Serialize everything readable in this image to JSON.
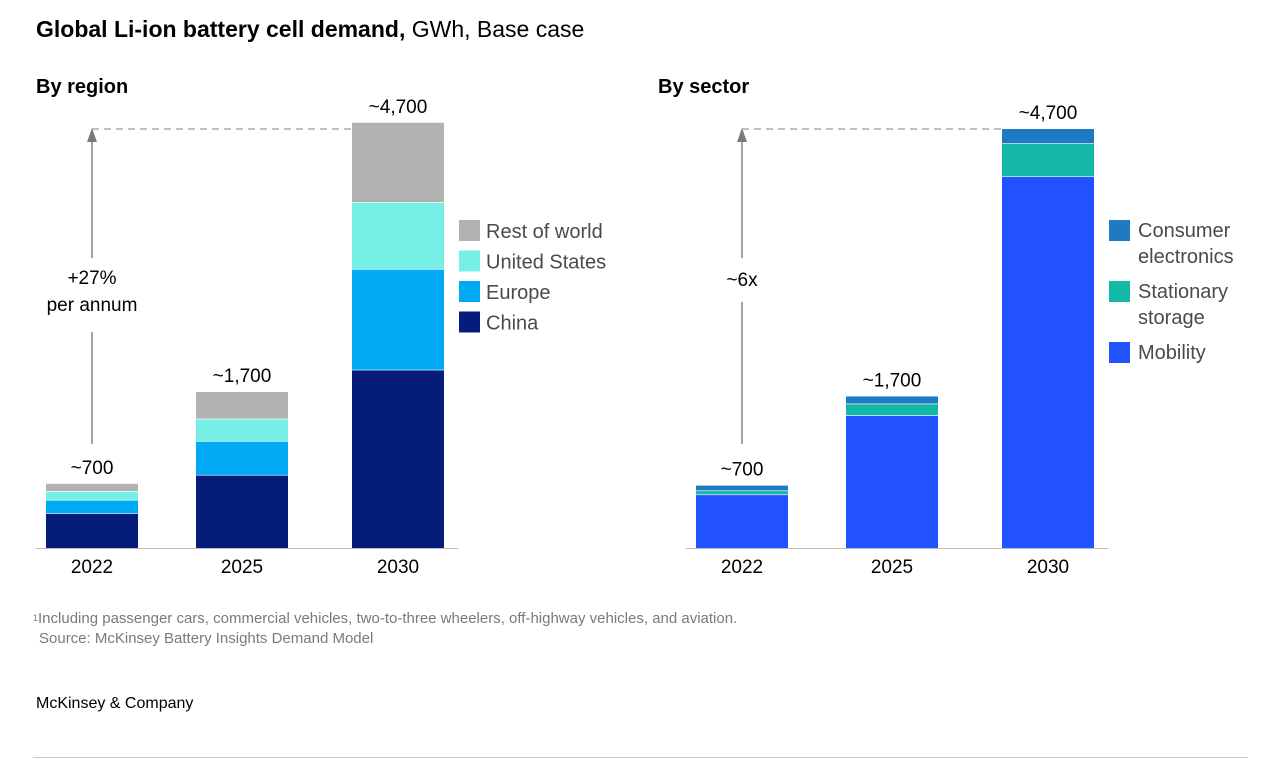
{
  "title": {
    "bold": "Global Li-ion battery cell demand,",
    "unit": "GWh, Base case"
  },
  "chart_data": [
    {
      "type": "bar",
      "stacked": true,
      "subtitle": "By region",
      "categories": [
        "2022",
        "2025",
        "2030"
      ],
      "totals": [
        "~700",
        "~1,700",
        "~4,700"
      ],
      "ylim": [
        0,
        4700
      ],
      "grid": false,
      "legend_position": "right",
      "series": [
        {
          "name": "China",
          "color": "#051C7A",
          "values": [
            390,
            820,
            2000
          ]
        },
        {
          "name": "Europe",
          "color": "#00A9F4",
          "values": [
            150,
            380,
            1130
          ]
        },
        {
          "name": "United States",
          "color": "#77EFE4",
          "values": [
            100,
            250,
            750
          ]
        },
        {
          "name": "Rest of world",
          "color": "#B2B2B2",
          "values": [
            80,
            300,
            890
          ]
        }
      ],
      "annotation": {
        "line1": "+27%",
        "line2": "per annum"
      }
    },
    {
      "type": "bar",
      "stacked": true,
      "subtitle": "By sector",
      "categories": [
        "2022",
        "2025",
        "2030"
      ],
      "totals": [
        "~700",
        "~1,700",
        "~4,700"
      ],
      "ylim": [
        0,
        4700
      ],
      "grid": false,
      "legend_position": "right",
      "series": [
        {
          "name": "Mobility",
          "color": "#2251FF",
          "values": [
            600,
            1490,
            4170
          ]
        },
        {
          "name": "Stationary storage",
          "color": "#14B8A6",
          "values": [
            45,
            130,
            370
          ]
        },
        {
          "name": "Consumer electronics",
          "color": "#1F7AC4",
          "values": [
            55,
            80,
            160
          ]
        }
      ],
      "annotation": {
        "line1": "~6x",
        "line2": ""
      }
    }
  ],
  "legend_region": [
    {
      "label": "Rest of world",
      "color": "#B2B2B2"
    },
    {
      "label": "United States",
      "color": "#77EFE4"
    },
    {
      "label": "Europe",
      "color": "#00A9F4"
    },
    {
      "label": "China",
      "color": "#051C7A"
    }
  ],
  "legend_sector": [
    {
      "line1": "Consumer",
      "line2": "electronics",
      "color": "#1F7AC4"
    },
    {
      "line1": "Stationary",
      "line2": "storage",
      "color": "#14B8A6"
    },
    {
      "line1": "Mobility",
      "line2": "",
      "color": "#2251FF"
    }
  ],
  "footnote": {
    "marker": "1",
    "text": "Including passenger cars, commercial vehicles, two-to-three wheelers, off-highway vehicles, and aviation.",
    "source": "Source: McKinsey Battery Insights Demand Model"
  },
  "brand": "McKinsey & Company"
}
